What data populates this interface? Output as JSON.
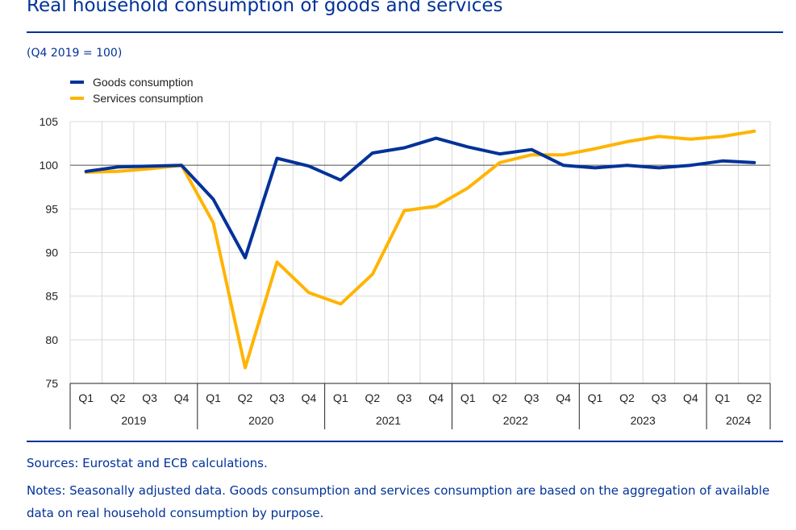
{
  "header": {
    "title": "Real household consumption of goods and services",
    "subtitle": "(Q4 2019 = 100)"
  },
  "footer": {
    "sources": "Sources: Eurostat and ECB calculations.",
    "notes": "Notes: Seasonally adjusted data. Goods consumption and services consumption are based on the aggregation of available data on real household consumption by purpose."
  },
  "colors": {
    "goods": "#003299",
    "services": "#ffb400",
    "text": "#003299",
    "grid": "#d9d9d9",
    "axis": "#222222"
  },
  "chart_data": {
    "type": "line",
    "x": [
      "Q1",
      "Q2",
      "Q3",
      "Q4",
      "Q1",
      "Q2",
      "Q3",
      "Q4",
      "Q1",
      "Q2",
      "Q3",
      "Q4",
      "Q1",
      "Q2",
      "Q3",
      "Q4",
      "Q1",
      "Q2",
      "Q3",
      "Q4",
      "Q1",
      "Q2"
    ],
    "years": [
      {
        "label": "2019",
        "count": 4
      },
      {
        "label": "2020",
        "count": 4
      },
      {
        "label": "2021",
        "count": 4
      },
      {
        "label": "2022",
        "count": 4
      },
      {
        "label": "2023",
        "count": 4
      },
      {
        "label": "2024",
        "count": 2
      }
    ],
    "series": [
      {
        "name": "Goods consumption",
        "color": "#003299",
        "values": [
          99.3,
          99.8,
          99.9,
          100.0,
          96.1,
          89.4,
          100.8,
          99.9,
          98.3,
          101.4,
          102.0,
          103.1,
          102.1,
          101.3,
          101.8,
          100.0,
          99.7,
          100.0,
          99.7,
          100.0,
          100.5,
          100.3
        ]
      },
      {
        "name": "Services consumption",
        "color": "#ffb400",
        "values": [
          99.2,
          99.3,
          99.6,
          100.0,
          93.4,
          76.8,
          88.9,
          85.4,
          84.1,
          87.5,
          94.8,
          95.3,
          97.4,
          100.3,
          101.2,
          101.2,
          101.9,
          102.7,
          103.3,
          103.0,
          103.3,
          103.9
        ]
      }
    ],
    "title": "Real household consumption of goods and services",
    "ylim": [
      75,
      105
    ],
    "yticks": [
      75,
      80,
      85,
      90,
      95,
      100,
      105
    ],
    "reference_line": 100,
    "grid": true,
    "legend": "top-left"
  }
}
